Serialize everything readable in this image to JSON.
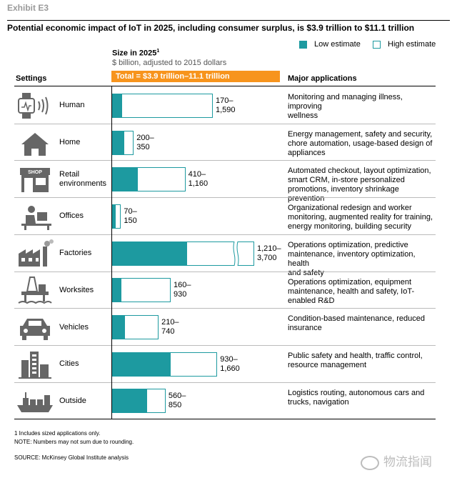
{
  "exhibit": "Exhibit E3",
  "title": "Potential economic impact of IoT in 2025, including consumer surplus, is $3.9 trillion to $11.1 trillion",
  "size_label": "Size in 2025",
  "size_label_sup": "1",
  "size_subtitle": "$ billion, adjusted to 2015 dollars",
  "total_label": "Total = $3.9 trillion–11.1 trillion",
  "columns": {
    "settings": "Settings",
    "applications": "Major applications"
  },
  "legend": {
    "low": "Low estimate",
    "high": "High estimate"
  },
  "colors": {
    "low": "#1d9aa0",
    "total": "#f7941d"
  },
  "chart_data": {
    "type": "bar",
    "orientation": "horizontal",
    "title": "Potential economic impact of IoT in 2025, including consumer surplus, is $3.9 trillion to $11.1 trillion",
    "categories": [
      "Human",
      "Home",
      "Retail environments",
      "Offices",
      "Factories",
      "Worksites",
      "Vehicles",
      "Cities",
      "Outside"
    ],
    "series": [
      {
        "name": "Low estimate",
        "values": [
          170,
          200,
          410,
          70,
          1210,
          160,
          210,
          930,
          560
        ]
      },
      {
        "name": "High estimate",
        "values": [
          1590,
          350,
          1160,
          150,
          3700,
          930,
          740,
          1660,
          850
        ]
      }
    ],
    "value_labels": [
      [
        "170–",
        "1,590"
      ],
      [
        "200–",
        "350"
      ],
      [
        "410–",
        "1,160"
      ],
      [
        "70–",
        "150"
      ],
      [
        "1,210–",
        "3,700"
      ],
      [
        "160–",
        "930"
      ],
      [
        "210–",
        "740"
      ],
      [
        "930–",
        "1,660"
      ],
      [
        "560–",
        "850"
      ]
    ],
    "axis_break_on": "Factories",
    "legend_placement": "top-right"
  },
  "rows": [
    {
      "label": [
        "Human"
      ],
      "icon": "smartwatch-icon",
      "apps": [
        "Monitoring and managing illness, improving",
        "wellness"
      ]
    },
    {
      "label": [
        "Home"
      ],
      "icon": "house-icon",
      "apps": [
        "Energy management, safety and security,",
        "chore automation, usage-based design of",
        "appliances"
      ]
    },
    {
      "label": [
        "Retail",
        "environments"
      ],
      "icon": "shop-icon",
      "shop_text": "SHOP",
      "apps": [
        "Automated checkout, layout optimization,",
        "smart CRM, in-store personalized",
        "promotions, inventory shrinkage prevention"
      ]
    },
    {
      "label": [
        "Offices"
      ],
      "icon": "office-worker-icon",
      "apps": [
        "Organizational redesign and worker",
        "monitoring, augmented reality for training,",
        "energy monitoring, building security"
      ]
    },
    {
      "label": [
        "Factories"
      ],
      "icon": "factory-icon",
      "apps": [
        "Operations optimization, predictive",
        "maintenance, inventory optimization, health",
        "and safety"
      ]
    },
    {
      "label": [
        "Worksites"
      ],
      "icon": "oil-rig-icon",
      "apps": [
        "Operations optimization, equipment",
        "maintenance, health and safety, IoT-",
        "enabled R&D"
      ]
    },
    {
      "label": [
        "Vehicles"
      ],
      "icon": "car-icon",
      "apps": [
        "Condition-based maintenance, reduced",
        "insurance"
      ]
    },
    {
      "label": [
        "Cities"
      ],
      "icon": "city-icon",
      "apps": [
        "Public safety and health, traffic control,",
        "resource management"
      ]
    },
    {
      "label": [
        "Outside"
      ],
      "icon": "cargo-ship-icon",
      "apps": [
        "Logistics routing, autonomous cars and",
        "trucks, navigation"
      ]
    }
  ],
  "footnotes": [
    "1  Includes sized applications only.",
    "NOTE: Numbers may not sum due to rounding.",
    "SOURCE:  McKinsey Global Institute analysis"
  ],
  "watermark": "物流指闻"
}
